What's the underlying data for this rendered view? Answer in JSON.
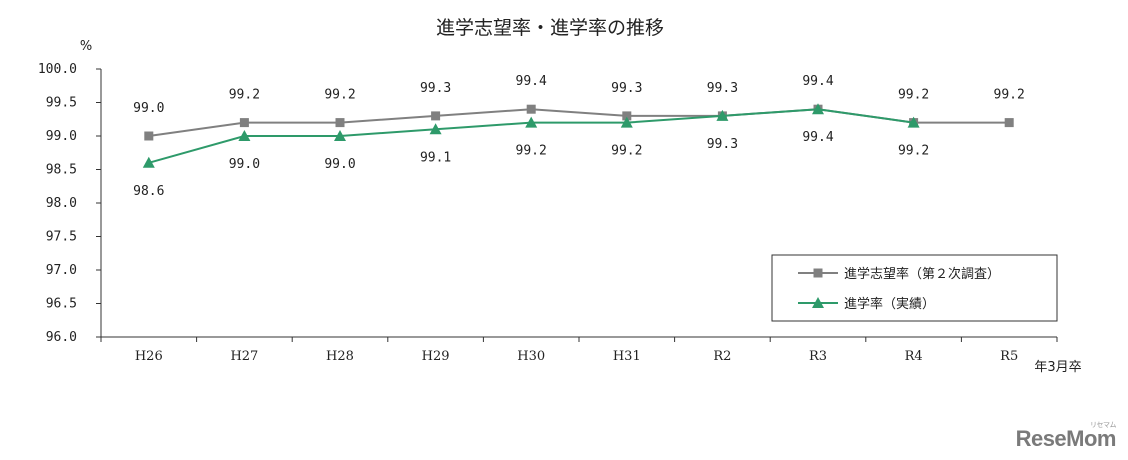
{
  "chart_data": {
    "type": "line",
    "title": "進学志望率・進学率の推移",
    "ylabel": "%",
    "xunit": "年3月卒",
    "categories": [
      "H26",
      "H27",
      "H28",
      "H29",
      "H30",
      "H31",
      "R2",
      "R3",
      "R4",
      "R5"
    ],
    "ylim": [
      96.0,
      100.0
    ],
    "yticks": [
      "96.0",
      "96.5",
      "97.0",
      "97.5",
      "98.0",
      "98.5",
      "99.0",
      "99.5",
      "100.0"
    ],
    "grid": false,
    "legend_position": "bottom-right",
    "series": [
      {
        "name": "進学志望率（第２次調査）",
        "color": "#808080",
        "marker": "square",
        "values": [
          99.0,
          99.2,
          99.2,
          99.3,
          99.4,
          99.3,
          99.3,
          99.4,
          99.2,
          99.2
        ],
        "labels": [
          "99.0",
          "99.2",
          "99.2",
          "99.3",
          "99.4",
          "99.3",
          "99.3",
          "99.4",
          "99.2",
          "99.2"
        ]
      },
      {
        "name": "進学率（実績）",
        "color": "#2e9a6a",
        "marker": "triangle",
        "values": [
          98.6,
          99.0,
          99.0,
          99.1,
          99.2,
          99.2,
          99.3,
          99.4,
          99.2,
          null
        ],
        "labels": [
          "98.6",
          "99.0",
          "99.0",
          "99.1",
          "99.2",
          "99.2",
          "99.3",
          "99.4",
          "99.2",
          ""
        ]
      }
    ]
  },
  "brand": {
    "logo": "ReseMom",
    "sub": "リセマム"
  }
}
